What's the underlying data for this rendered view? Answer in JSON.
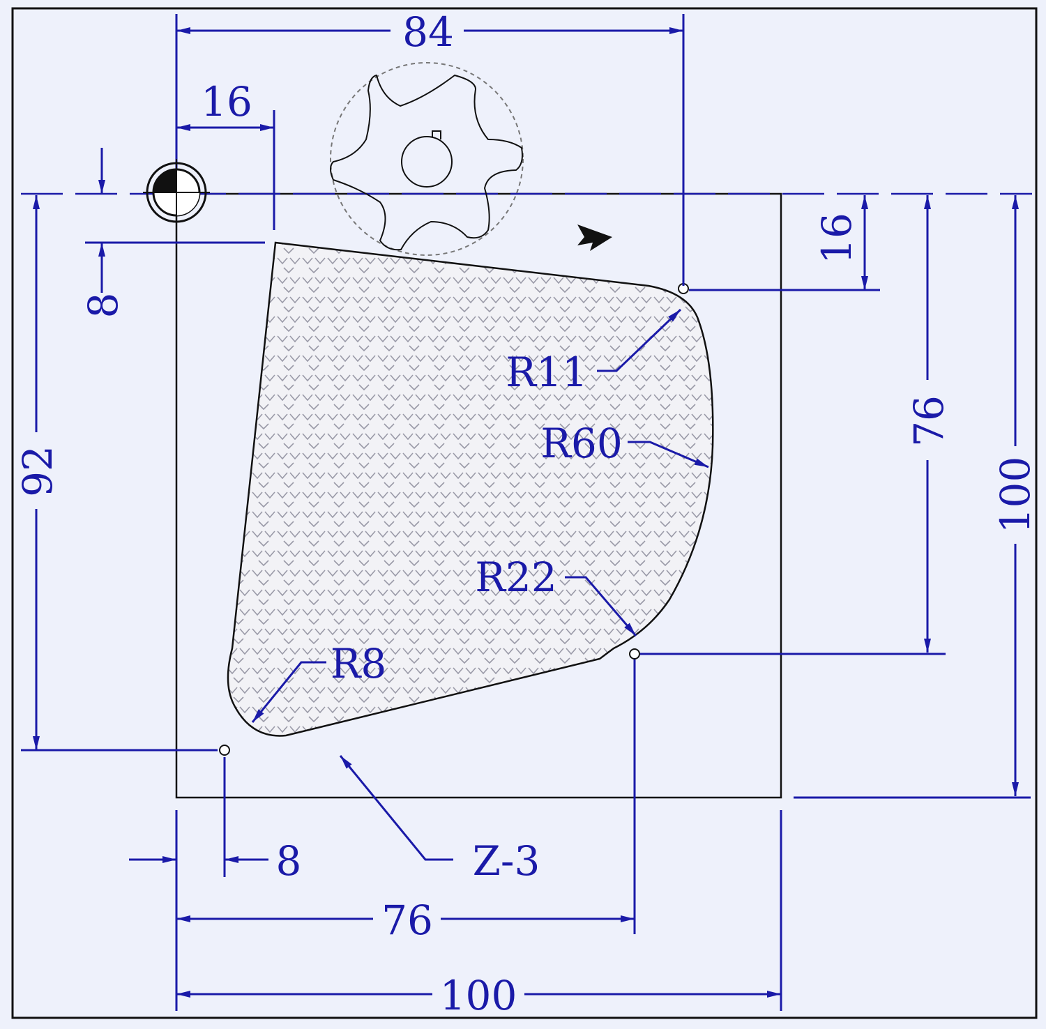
{
  "colors": {
    "background": "#eef1fb",
    "dimension": "#1a1aa8",
    "outline": "#111111",
    "hatch": "#a0a0a0"
  },
  "dimensions": {
    "top_width": "84",
    "origin_offset_x": "16",
    "origin_offset_y_left": "8",
    "left_height": "92",
    "right_offset": "16",
    "right_height": "76",
    "right_total": "100",
    "bottom_offset": "8",
    "bottom_width": "76",
    "bottom_total": "100"
  },
  "radii": {
    "r11": "R11",
    "r60": "R60",
    "r22": "R22",
    "r8": "R8"
  },
  "depth_label": "Z-3"
}
